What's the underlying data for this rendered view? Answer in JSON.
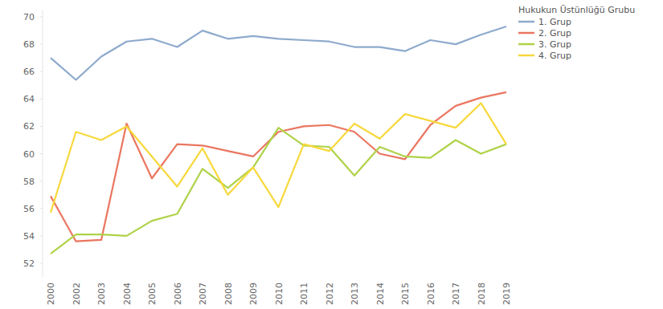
{
  "chart_data": {
    "type": "line",
    "legend_title": "Hukukun Üstünlüğü Grubu",
    "legend": "top-right",
    "grid": false,
    "categories": [
      "2000",
      "2002",
      "2003",
      "2004",
      "2005",
      "2006",
      "2007",
      "2008",
      "2009",
      "2010",
      "2011",
      "2012",
      "2013",
      "2014",
      "2015",
      "2016",
      "2017",
      "2018",
      "2019"
    ],
    "ylim": [
      51,
      70.5
    ],
    "yticks": [
      52,
      54,
      56,
      58,
      60,
      62,
      64,
      66,
      68,
      70
    ],
    "series": [
      {
        "name": "1. Grup",
        "color": "#8eaacd",
        "values": [
          67.0,
          65.4,
          67.1,
          68.2,
          68.4,
          67.8,
          69.0,
          68.4,
          68.6,
          68.4,
          68.3,
          68.2,
          67.8,
          67.8,
          67.5,
          68.3,
          68.0,
          68.7,
          69.3
        ]
      },
      {
        "name": "2. Grup",
        "color": "#ea7660",
        "values": [
          56.9,
          53.6,
          53.7,
          62.2,
          58.2,
          60.7,
          60.6,
          60.2,
          59.8,
          61.6,
          62.0,
          62.1,
          61.6,
          60.0,
          59.6,
          62.1,
          63.5,
          64.1,
          64.5
        ]
      },
      {
        "name": "3. Grup",
        "color": "#afd248",
        "values": [
          52.7,
          54.1,
          54.1,
          54.0,
          55.1,
          55.6,
          58.9,
          57.5,
          59.0,
          61.9,
          60.6,
          60.5,
          58.4,
          60.5,
          59.8,
          59.7,
          61.0,
          60.0,
          60.7
        ]
      },
      {
        "name": "4. Grup",
        "color": "#f7d83c",
        "values": [
          55.7,
          61.6,
          61.0,
          62.0,
          59.8,
          57.6,
          60.4,
          57.0,
          59.0,
          56.1,
          60.7,
          60.2,
          62.2,
          61.1,
          62.9,
          62.4,
          61.9,
          63.7,
          60.7
        ]
      }
    ]
  }
}
